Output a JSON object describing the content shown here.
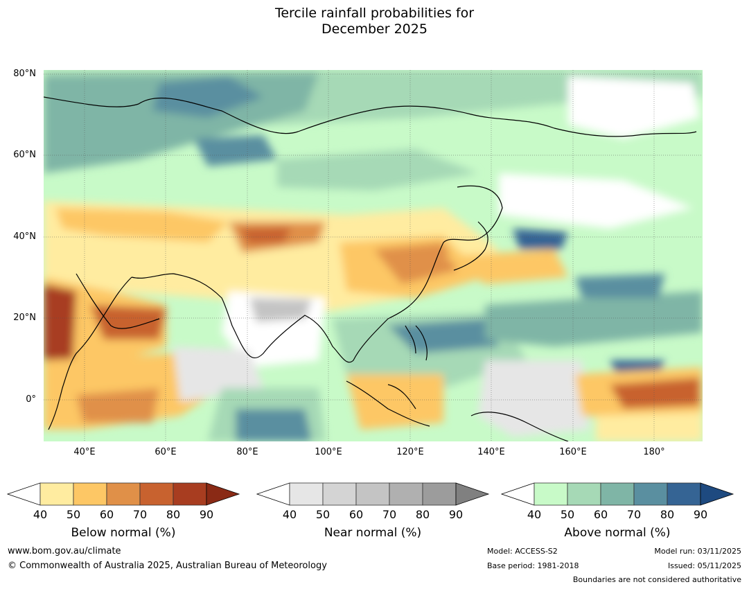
{
  "title": {
    "line1": "Tercile rainfall probabilities for",
    "line2": "December 2025"
  },
  "map": {
    "lat_labels": [
      "80°N",
      "60°N",
      "40°N",
      "20°N",
      "0°"
    ],
    "lon_labels": [
      "40°E",
      "60°E",
      "80°E",
      "100°E",
      "120°E",
      "140°E",
      "160°E",
      "180°"
    ],
    "extent": {
      "lon_min": 30,
      "lon_max": 192,
      "lat_min": -10,
      "lat_max": 81
    }
  },
  "colorbars": [
    {
      "title": "Below normal (%)",
      "ticks": [
        "40",
        "50",
        "60",
        "70",
        "80",
        "90"
      ],
      "colors": [
        "#ffffff",
        "#ffeca0",
        "#fdc765",
        "#e09048",
        "#c8622f",
        "#a83d20",
        "#8a2a15"
      ]
    },
    {
      "title": "Near normal (%)",
      "ticks": [
        "40",
        "50",
        "60",
        "70",
        "80",
        "90"
      ],
      "colors": [
        "#ffffff",
        "#e6e6e6",
        "#d4d4d4",
        "#c4c4c4",
        "#b0b0b0",
        "#9c9c9c",
        "#808080"
      ]
    },
    {
      "title": "Above normal (%)",
      "ticks": [
        "40",
        "50",
        "60",
        "70",
        "80",
        "90"
      ],
      "colors": [
        "#ffffff",
        "#c8fac8",
        "#a6d9b6",
        "#7fb5a6",
        "#5a8fa0",
        "#356494",
        "#1e4a80"
      ]
    }
  ],
  "footer": {
    "website": "www.bom.gov.au/climate",
    "copyright": "© Commonwealth of Australia 2025, Australian Bureau of Meteorology",
    "model": "Model: ACCESS-S2",
    "base_period": "Base period: 1981-2018",
    "model_run": "Model run: 03/11/2025",
    "issued": "Issued: 05/11/2025",
    "disclaimer": "Boundaries are not considered authoritative"
  }
}
